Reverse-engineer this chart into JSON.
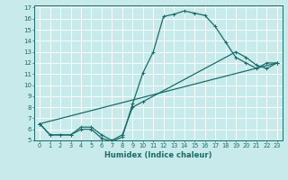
{
  "xlabel": "Humidex (Indice chaleur)",
  "ylabel": "",
  "bg_color": "#c8eaea",
  "grid_color": "#b0d8d8",
  "line_color": "#1a6b6b",
  "xlim": [
    -0.5,
    23.5
  ],
  "ylim": [
    5,
    17.2
  ],
  "xtick_labels": [
    "0",
    "1",
    "2",
    "3",
    "4",
    "5",
    "6",
    "7",
    "8",
    "9",
    "10",
    "11",
    "12",
    "13",
    "14",
    "15",
    "16",
    "17",
    "18",
    "19",
    "20",
    "21",
    "22",
    "23"
  ],
  "xtick_vals": [
    0,
    1,
    2,
    3,
    4,
    5,
    6,
    7,
    8,
    9,
    10,
    11,
    12,
    13,
    14,
    15,
    16,
    17,
    18,
    19,
    20,
    21,
    22,
    23
  ],
  "ytick_vals": [
    5,
    6,
    7,
    8,
    9,
    10,
    11,
    12,
    13,
    14,
    15,
    16,
    17
  ],
  "ytick_labels": [
    "5",
    "6",
    "7",
    "8",
    "9",
    "10",
    "11",
    "12",
    "13",
    "14",
    "15",
    "16",
    "17"
  ],
  "line1_x": [
    0,
    1,
    2,
    3,
    4,
    5,
    6,
    7,
    8,
    9,
    10,
    11,
    12,
    13,
    14,
    15,
    16,
    17,
    18,
    19,
    20,
    21,
    22,
    23
  ],
  "line1_y": [
    6.5,
    5.5,
    5.5,
    5.5,
    6.0,
    6.0,
    5.2,
    4.9,
    5.3,
    8.3,
    11.1,
    13.0,
    16.2,
    16.4,
    16.7,
    16.5,
    16.3,
    15.3,
    13.9,
    12.5,
    12.0,
    11.5,
    12.0,
    12.0
  ],
  "line2_x": [
    0,
    23
  ],
  "line2_y": [
    6.5,
    12.0
  ],
  "line3_x": [
    0,
    1,
    2,
    3,
    4,
    5,
    6,
    7,
    8,
    9,
    10,
    19,
    20,
    21,
    22,
    23
  ],
  "line3_y": [
    6.5,
    5.5,
    5.5,
    5.5,
    6.2,
    6.2,
    5.5,
    5.0,
    5.5,
    8.0,
    8.5,
    13.0,
    12.5,
    11.8,
    11.5,
    12.0
  ]
}
